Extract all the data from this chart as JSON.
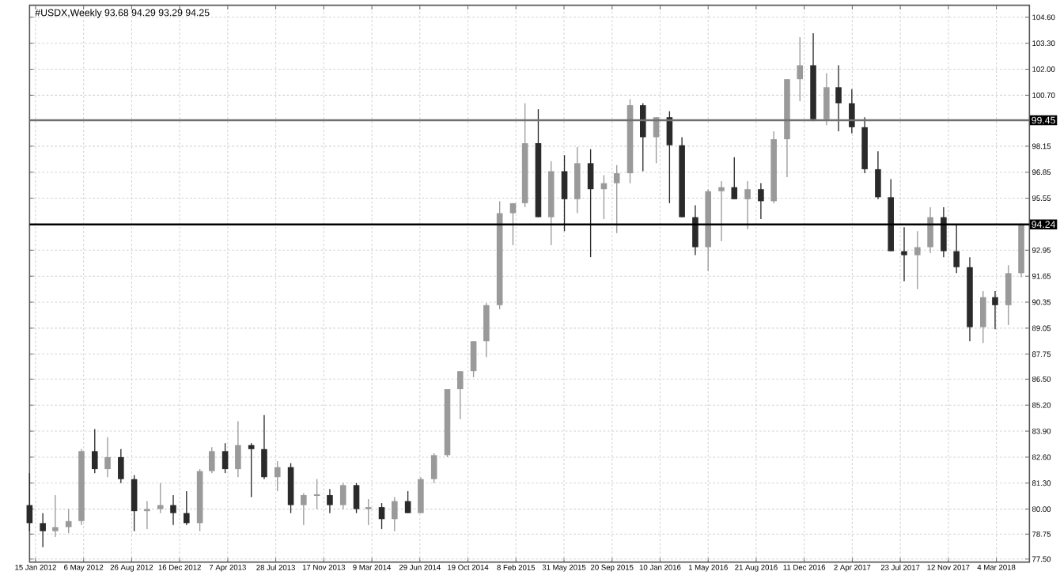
{
  "chart_data": {
    "type": "candlestick",
    "title": "#USDX,Weekly  93.68 94.29 93.29 94.25",
    "x": [
      "2012-01",
      "2012-02",
      "2012-03",
      "2012-04",
      "2012-05",
      "2012-06",
      "2012-07",
      "2012-08",
      "2012-09",
      "2012-10",
      "2012-11",
      "2012-12",
      "2013-01",
      "2013-02",
      "2013-03",
      "2013-04",
      "2013-05",
      "2013-06",
      "2013-07",
      "2013-08",
      "2013-09",
      "2013-10",
      "2013-11",
      "2013-12",
      "2014-01",
      "2014-02",
      "2014-03",
      "2014-04",
      "2014-05",
      "2014-06",
      "2014-07",
      "2014-08",
      "2014-09",
      "2014-10",
      "2014-11",
      "2014-12",
      "2015-01",
      "2015-02",
      "2015-03",
      "2015-04",
      "2015-05",
      "2015-06",
      "2015-07",
      "2015-08",
      "2015-09",
      "2015-10",
      "2015-11",
      "2015-12",
      "2016-01",
      "2016-02",
      "2016-03",
      "2016-04",
      "2016-05",
      "2016-06",
      "2016-07",
      "2016-08",
      "2016-09",
      "2016-10",
      "2016-11",
      "2016-12",
      "2017-01",
      "2017-02",
      "2017-03",
      "2017-04",
      "2017-05",
      "2017-06",
      "2017-07",
      "2017-08",
      "2017-09",
      "2017-10",
      "2017-11",
      "2017-12",
      "2018-01",
      "2018-02",
      "2018-03",
      "2018-04",
      "2018-05"
    ],
    "ohlc": [
      [
        80.2,
        81.8,
        78.9,
        79.3
      ],
      [
        79.3,
        79.8,
        78.1,
        78.9
      ],
      [
        78.9,
        80.7,
        78.6,
        79.1
      ],
      [
        79.1,
        80.0,
        78.8,
        79.4
      ],
      [
        79.4,
        83.0,
        79.2,
        82.9
      ],
      [
        82.9,
        84.0,
        81.8,
        82.0
      ],
      [
        82.0,
        83.6,
        81.6,
        82.6
      ],
      [
        82.6,
        83.0,
        81.3,
        81.5
      ],
      [
        81.5,
        81.7,
        78.9,
        79.9
      ],
      [
        79.9,
        80.4,
        79.0,
        80.0
      ],
      [
        80.0,
        81.3,
        79.8,
        80.2
      ],
      [
        80.2,
        80.7,
        79.2,
        79.8
      ],
      [
        79.8,
        80.9,
        79.2,
        79.3
      ],
      [
        79.3,
        82.0,
        78.9,
        81.9
      ],
      [
        81.9,
        83.1,
        81.8,
        82.9
      ],
      [
        82.9,
        83.3,
        81.8,
        82.0
      ],
      [
        82.0,
        84.4,
        81.6,
        83.2
      ],
      [
        83.2,
        83.3,
        80.6,
        83.0
      ],
      [
        83.0,
        84.7,
        81.5,
        81.6
      ],
      [
        81.6,
        82.4,
        80.9,
        82.1
      ],
      [
        82.1,
        82.3,
        79.8,
        80.2
      ],
      [
        80.2,
        80.8,
        79.2,
        80.7
      ],
      [
        80.7,
        81.5,
        80.0,
        80.7
      ],
      [
        80.7,
        81.0,
        79.8,
        80.2
      ],
      [
        80.2,
        81.3,
        80.0,
        81.2
      ],
      [
        81.2,
        81.3,
        79.8,
        80.0
      ],
      [
        80.0,
        80.5,
        79.2,
        80.1
      ],
      [
        80.1,
        80.3,
        79.0,
        79.5
      ],
      [
        79.5,
        80.6,
        78.9,
        80.4
      ],
      [
        80.4,
        80.9,
        79.8,
        79.8
      ],
      [
        79.8,
        81.6,
        79.8,
        81.5
      ],
      [
        81.5,
        82.8,
        81.3,
        82.7
      ],
      [
        82.7,
        86.0,
        82.6,
        86.0
      ],
      [
        86.0,
        86.9,
        84.5,
        86.9
      ],
      [
        86.9,
        88.4,
        86.6,
        88.4
      ],
      [
        88.4,
        90.3,
        87.6,
        90.2
      ],
      [
        90.2,
        95.4,
        90.0,
        94.8
      ],
      [
        94.8,
        95.3,
        93.2,
        95.3
      ],
      [
        95.3,
        100.3,
        95.1,
        98.3
      ],
      [
        98.3,
        100.0,
        94.6,
        94.6
      ],
      [
        94.6,
        97.4,
        93.2,
        96.9
      ],
      [
        96.9,
        97.7,
        93.9,
        95.5
      ],
      [
        95.5,
        98.1,
        94.8,
        97.3
      ],
      [
        97.3,
        98.0,
        92.6,
        96.0
      ],
      [
        96.0,
        96.7,
        94.5,
        96.3
      ],
      [
        96.3,
        97.2,
        93.8,
        96.8
      ],
      [
        96.8,
        100.5,
        96.3,
        100.2
      ],
      [
        100.2,
        100.3,
        96.9,
        98.6
      ],
      [
        98.6,
        99.6,
        97.3,
        99.6
      ],
      [
        99.6,
        99.9,
        95.3,
        98.2
      ],
      [
        98.2,
        98.6,
        94.6,
        94.6
      ],
      [
        94.6,
        95.2,
        92.7,
        93.1
      ],
      [
        93.1,
        96.0,
        91.9,
        95.9
      ],
      [
        95.9,
        96.4,
        93.4,
        96.1
      ],
      [
        96.1,
        97.6,
        95.5,
        95.5
      ],
      [
        95.5,
        96.4,
        94.0,
        96.0
      ],
      [
        96.0,
        96.3,
        94.5,
        95.4
      ],
      [
        95.4,
        98.9,
        95.3,
        98.5
      ],
      [
        98.5,
        101.5,
        96.6,
        101.5
      ],
      [
        101.5,
        103.6,
        100.4,
        102.2
      ],
      [
        102.2,
        103.8,
        99.4,
        99.5
      ],
      [
        99.5,
        101.8,
        99.2,
        101.1
      ],
      [
        101.1,
        102.2,
        98.9,
        100.3
      ],
      [
        100.3,
        101.0,
        98.8,
        99.1
      ],
      [
        99.1,
        99.6,
        96.8,
        97.0
      ],
      [
        97.0,
        97.9,
        95.5,
        95.6
      ],
      [
        95.6,
        96.5,
        92.9,
        92.9
      ],
      [
        92.9,
        94.1,
        91.4,
        92.7
      ],
      [
        92.7,
        93.9,
        91.0,
        93.1
      ],
      [
        93.1,
        95.1,
        92.8,
        94.6
      ],
      [
        94.6,
        95.1,
        92.6,
        92.9
      ],
      [
        92.9,
        94.2,
        91.8,
        92.1
      ],
      [
        92.1,
        92.6,
        88.4,
        89.1
      ],
      [
        89.1,
        90.9,
        88.3,
        90.6
      ],
      [
        90.6,
        90.9,
        89.0,
        90.2
      ],
      [
        90.2,
        92.2,
        89.2,
        91.8
      ],
      [
        91.8,
        94.29,
        91.6,
        94.25
      ]
    ],
    "xlim": [
      "2012-01-01",
      "2018-05-20"
    ],
    "xticks": [
      {
        "value": "2012-01-15",
        "label": "15 Jan 2012"
      },
      {
        "value": "2012-05-06",
        "label": "6 May 2012"
      },
      {
        "value": "2012-08-26",
        "label": "26 Aug 2012"
      },
      {
        "value": "2012-12-16",
        "label": "16 Dec 2012"
      },
      {
        "value": "2013-04-07",
        "label": "7 Apr 2013"
      },
      {
        "value": "2013-07-28",
        "label": "28 Jul 2013"
      },
      {
        "value": "2013-11-17",
        "label": "17 Nov 2013"
      },
      {
        "value": "2014-03-09",
        "label": "9 Mar 2014"
      },
      {
        "value": "2014-06-29",
        "label": "29 Jun 2014"
      },
      {
        "value": "2014-10-19",
        "label": "19 Oct 2014"
      },
      {
        "value": "2015-02-08",
        "label": "8 Feb 2015"
      },
      {
        "value": "2015-05-31",
        "label": "31 May 2015"
      },
      {
        "value": "2015-09-20",
        "label": "20 Sep 2015"
      },
      {
        "value": "2016-01-10",
        "label": "10 Jan 2016"
      },
      {
        "value": "2016-05-01",
        "label": "1 May 2016"
      },
      {
        "value": "2016-08-21",
        "label": "21 Aug 2016"
      },
      {
        "value": "2016-12-11",
        "label": "11 Dec 2016"
      },
      {
        "value": "2017-04-02",
        "label": "2 Apr 2017"
      },
      {
        "value": "2017-07-23",
        "label": "23 Jul 2017"
      },
      {
        "value": "2017-11-12",
        "label": "12 Nov 2017"
      },
      {
        "value": "2018-03-04",
        "label": "4 Mar 2018"
      }
    ],
    "ylim": [
      77.35,
      105.2
    ],
    "yticks": [
      {
        "value": 77.5,
        "label": "77.50"
      },
      {
        "value": 78.75,
        "label": "78.75"
      },
      {
        "value": 80.0,
        "label": "80.00"
      },
      {
        "value": 81.3,
        "label": "81.30"
      },
      {
        "value": 82.6,
        "label": "82.60"
      },
      {
        "value": 83.9,
        "label": "83.90"
      },
      {
        "value": 85.2,
        "label": "85.20"
      },
      {
        "value": 86.5,
        "label": "86.50"
      },
      {
        "value": 87.75,
        "label": "87.75"
      },
      {
        "value": 89.05,
        "label": "89.05"
      },
      {
        "value": 90.35,
        "label": "90.35"
      },
      {
        "value": 91.65,
        "label": "91.65"
      },
      {
        "value": 92.95,
        "label": "92.95"
      },
      {
        "value": 95.55,
        "label": "95.55"
      },
      {
        "value": 96.85,
        "label": "96.85"
      },
      {
        "value": 98.15,
        "label": "98.15"
      },
      {
        "value": 100.7,
        "label": "100.70"
      },
      {
        "value": 102.0,
        "label": "102.00"
      },
      {
        "value": 103.3,
        "label": "103.30"
      },
      {
        "value": 104.6,
        "label": "104.60"
      }
    ],
    "ref_lines": [
      {
        "axis": "y",
        "value": 99.45,
        "label": "99.45",
        "color": "#707070"
      },
      {
        "axis": "y",
        "value": 94.24,
        "label": "94.24",
        "color": "#000000"
      }
    ],
    "grid": true
  }
}
